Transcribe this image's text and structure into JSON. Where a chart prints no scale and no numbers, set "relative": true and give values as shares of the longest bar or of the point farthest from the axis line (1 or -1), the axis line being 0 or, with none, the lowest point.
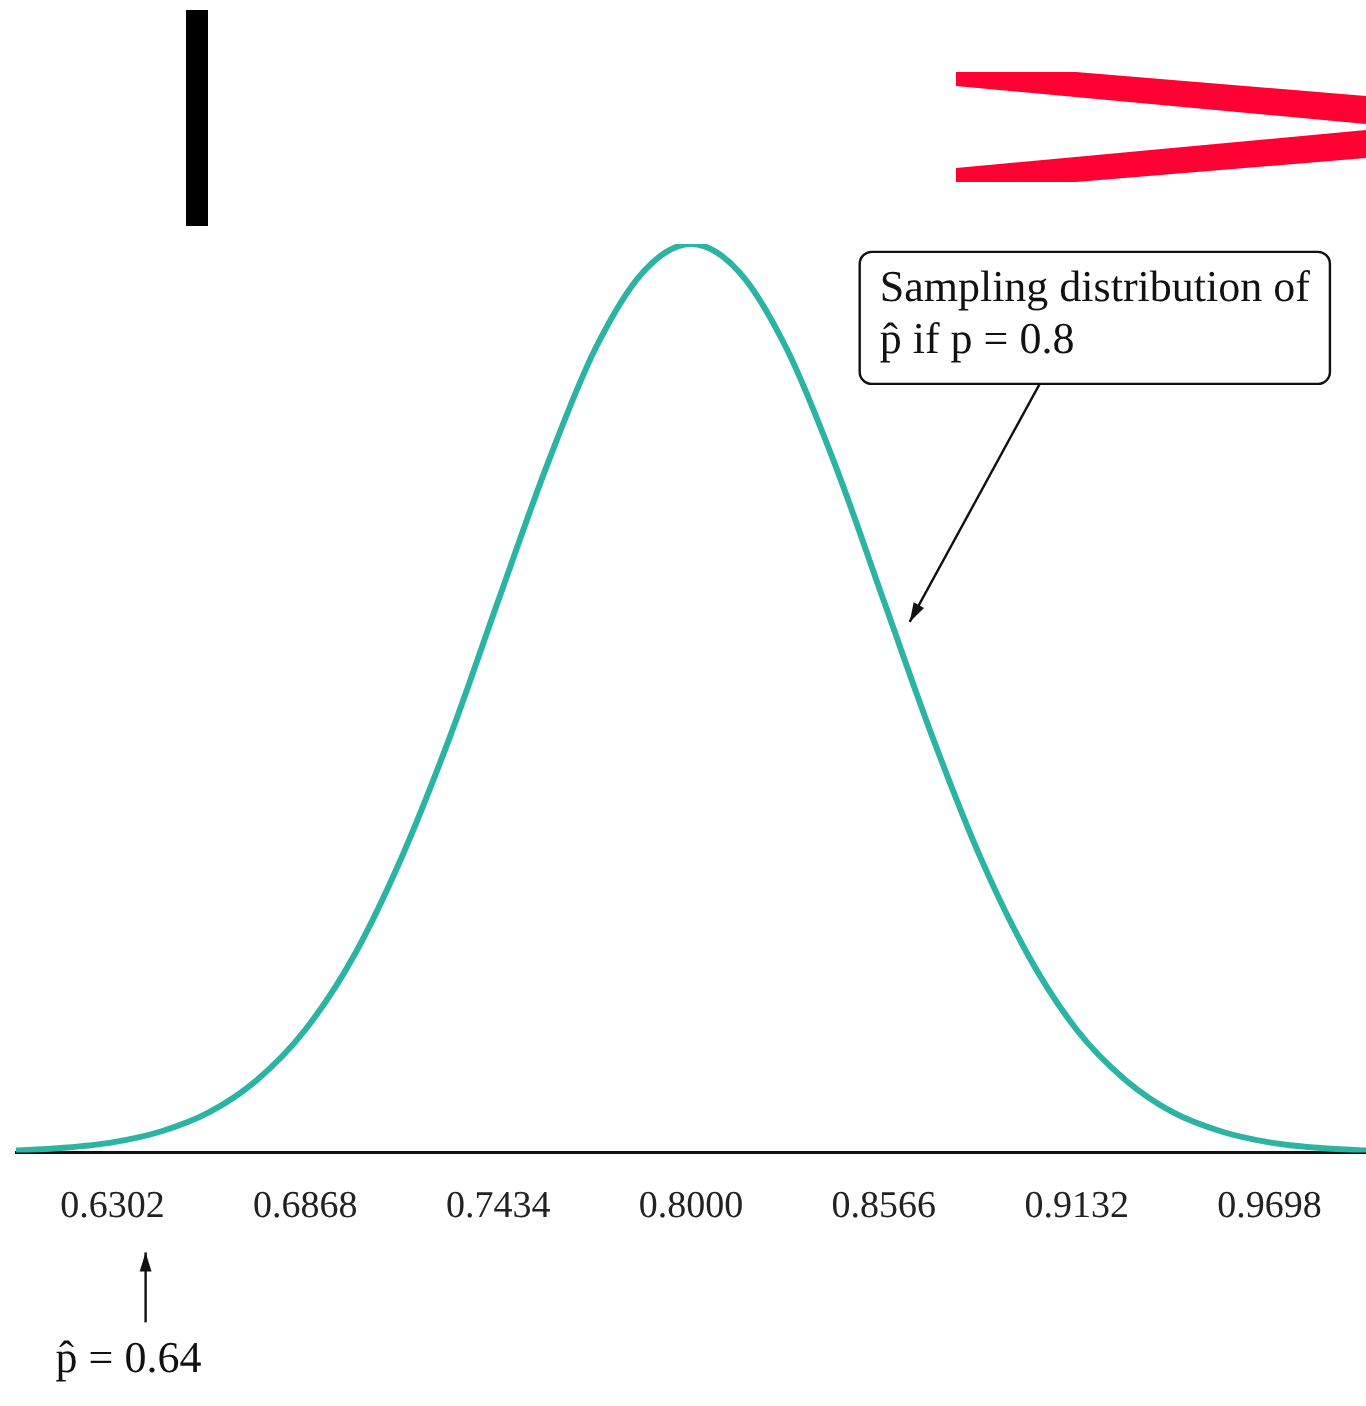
{
  "chart_data": {
    "type": "line",
    "relative": true,
    "x": [
      0.6019,
      0.616,
      0.6302,
      0.6444,
      0.6585,
      0.6727,
      0.6868,
      0.701,
      0.7151,
      0.7293,
      0.7434,
      0.7576,
      0.7717,
      0.7859,
      0.8,
      0.8142,
      0.8283,
      0.8425,
      0.8566,
      0.8708,
      0.8849,
      0.8991,
      0.9132,
      0.9274,
      0.9415,
      0.9557,
      0.9698,
      0.984,
      0.9981
    ],
    "series": [
      {
        "color": "#2bb3a3",
        "values": [
          0.002,
          0.005,
          0.011,
          0.023,
          0.044,
          0.08,
          0.135,
          0.216,
          0.325,
          0.458,
          0.607,
          0.755,
          0.883,
          0.969,
          1,
          0.969,
          0.883,
          0.755,
          0.607,
          0.458,
          0.325,
          0.216,
          0.135,
          0.08,
          0.044,
          0.023,
          0.011,
          0.005,
          0.002
        ]
      }
    ],
    "xlim": [
      0.6019,
      0.9981
    ],
    "xticks": [
      0.6302,
      0.6868,
      0.7434,
      {
        "value": 0.8,
        "label": "0.8000"
      },
      0.8566,
      0.9132,
      0.9698
    ],
    "annotations": [
      "Sampling distribution of p̂ if p = 0.8",
      "p̂ = 0.64"
    ],
    "grid": false,
    "legend": false,
    "marker": "none",
    "line_style": "solid"
  }
}
